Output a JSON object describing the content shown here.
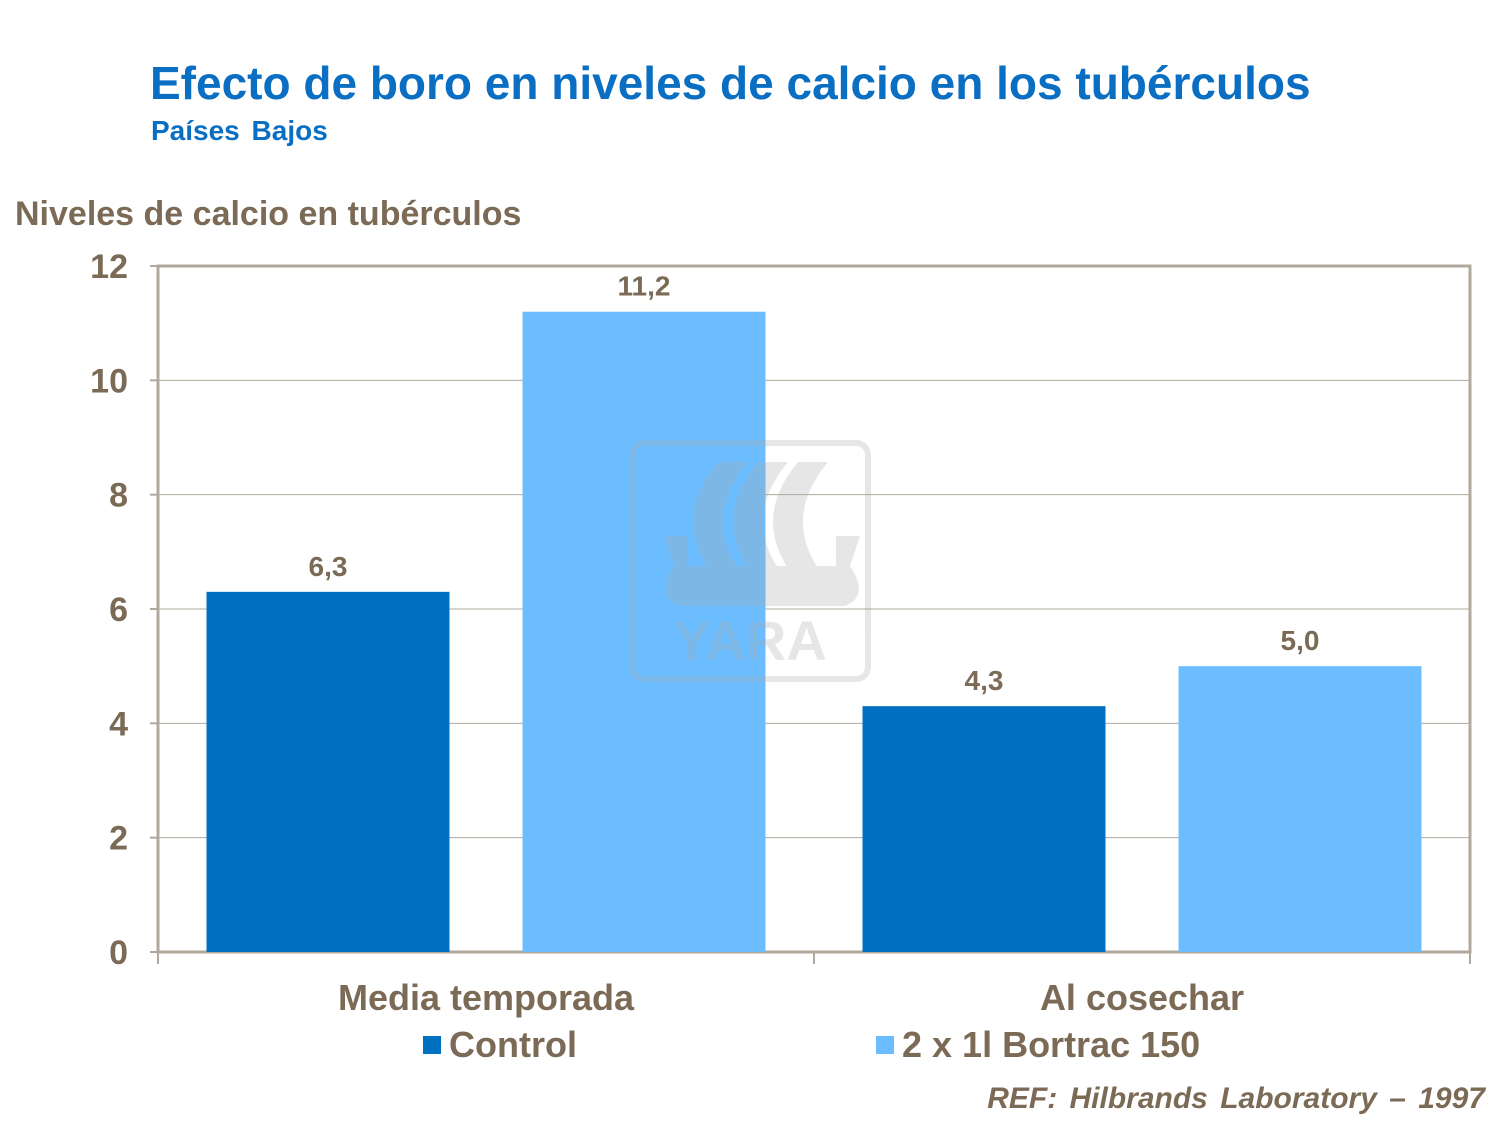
{
  "title": "Efecto de boro en niveles de calcio en los tubérculos",
  "subtitle": "Países Bajos",
  "reference": "REF: Hilbrands Laboratory – 1997",
  "watermark": "YARA",
  "chart_data": {
    "type": "bar",
    "title": "Efecto de boro en niveles de calcio en los tubérculos",
    "ylabel": "Niveles de calcio en tubérculos",
    "xlabel": "",
    "categories": [
      "Media temporada",
      "Al cosechar"
    ],
    "series": [
      {
        "name": "Control",
        "values": [
          6.3,
          4.3
        ],
        "labels": [
          "6,3",
          "4,3"
        ],
        "color": "#0070c0"
      },
      {
        "name": "2 x 1l Bortrac 150",
        "values": [
          11.2,
          5.0
        ],
        "labels": [
          "11,2",
          "5,0"
        ],
        "color": "#6bbdff"
      }
    ],
    "ylim": [
      0,
      12
    ],
    "yticks": [
      0,
      2,
      4,
      6,
      8,
      10,
      12
    ],
    "grid": true,
    "legend": "bottom"
  }
}
